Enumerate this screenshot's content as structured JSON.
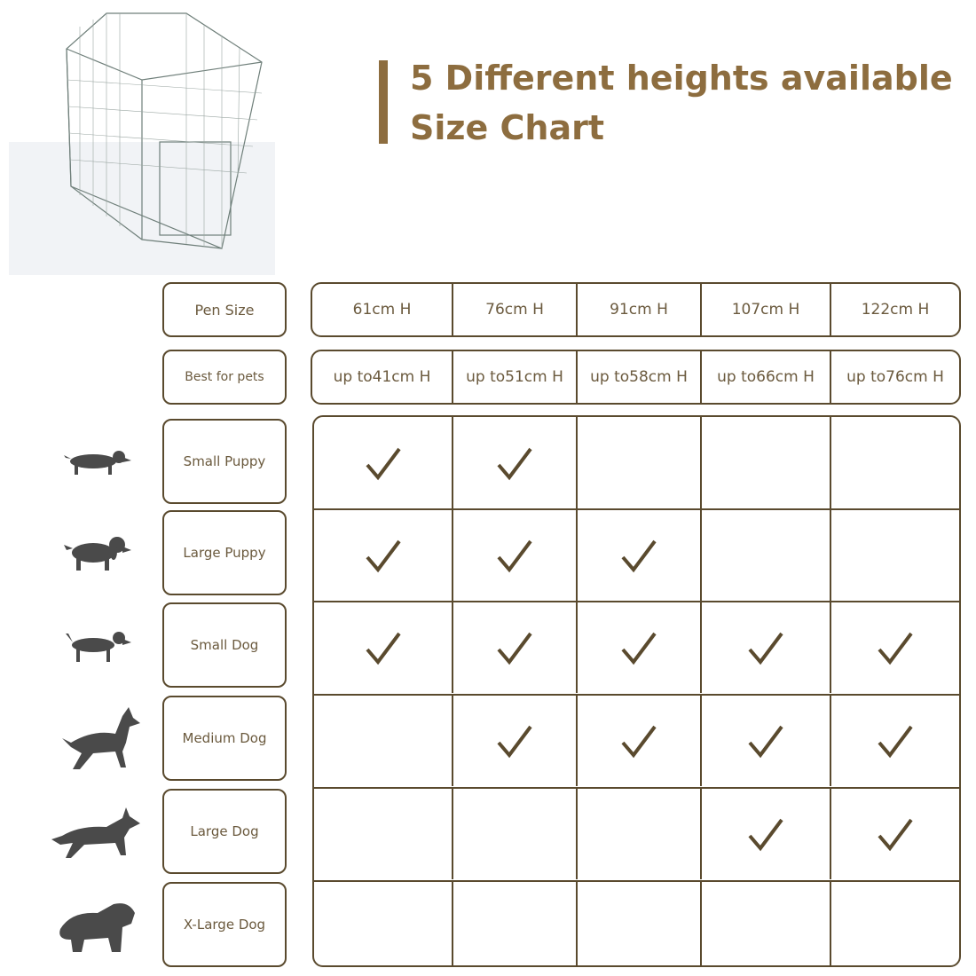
{
  "title": {
    "line1": "5 Different heights available",
    "line2": "Size Chart"
  },
  "colors": {
    "accent": "#8d6d3f",
    "border": "#5a4a2e",
    "text": "#6b5a3e",
    "dog": "#4a4a4a"
  },
  "header_rows": [
    {
      "label": "Pen Size",
      "values": [
        "61cm H",
        "76cm H",
        "91cm H",
        "107cm H",
        "122cm H"
      ]
    },
    {
      "label": "Best for pets",
      "values": [
        [
          "up to",
          "41cm H"
        ],
        [
          "up to",
          "51cm H"
        ],
        [
          "up to",
          "58cm H"
        ],
        [
          "up to",
          "66cm H"
        ],
        [
          "up to",
          "76cm H"
        ]
      ]
    }
  ],
  "rows": [
    {
      "label": "Small Puppy",
      "icon": "dachshund-puppy-icon",
      "checks": [
        true,
        true,
        false,
        false,
        false
      ]
    },
    {
      "label": "Large Puppy",
      "icon": "spaniel-puppy-icon",
      "checks": [
        true,
        true,
        true,
        false,
        false
      ]
    },
    {
      "label": "Small Dog",
      "icon": "small-dog-icon",
      "checks": [
        true,
        true,
        true,
        true,
        true
      ]
    },
    {
      "label": "Medium Dog",
      "icon": "doberman-icon",
      "checks": [
        false,
        true,
        true,
        true,
        true
      ]
    },
    {
      "label": "Large Dog",
      "icon": "shepherd-icon",
      "checks": [
        false,
        false,
        false,
        true,
        true
      ]
    },
    {
      "label": "X-Large Dog",
      "icon": "fluffy-dog-icon",
      "checks": [
        false,
        false,
        false,
        false,
        false
      ]
    }
  ]
}
